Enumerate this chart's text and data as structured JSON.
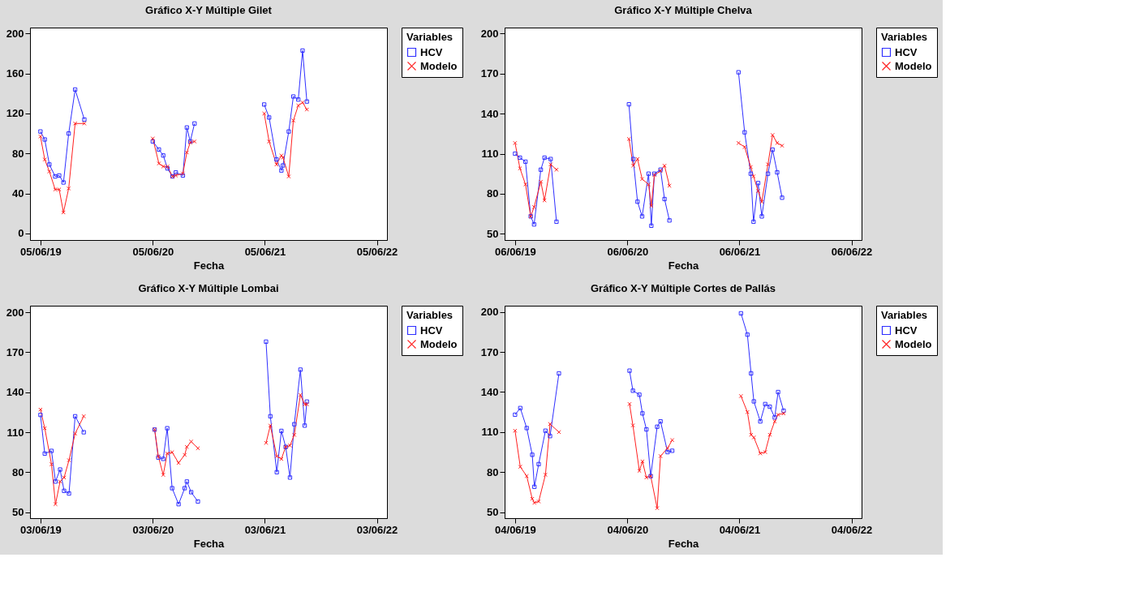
{
  "chart_data": [
    {
      "type": "line",
      "title": "Gráfico X-Y Múltiple Gilet",
      "xlabel": "Fecha",
      "legend_title": "Variables",
      "legend": "top right",
      "grid": false,
      "xlim": [
        "2019-05-02",
        "2022-07-08"
      ],
      "xticks": [
        {
          "value": "2019-06-05",
          "label": "05/06/19"
        },
        {
          "value": "2020-06-05",
          "label": "05/06/20"
        },
        {
          "value": "2021-06-05",
          "label": "05/06/21"
        },
        {
          "value": "2022-06-05",
          "label": "05/06/22"
        }
      ],
      "ylim": [
        -6.6,
        206
      ],
      "yticks": [
        0,
        40,
        80,
        120,
        160,
        200
      ],
      "x": [
        "2019-06-05",
        "2019-06-19",
        "2019-07-04",
        "2019-07-23",
        "2019-08-05",
        "2019-08-19",
        "2019-09-05",
        "2019-09-26",
        "2019-10-26",
        "2020-01-01",
        "2020-06-05",
        "2020-06-25",
        "2020-07-09",
        "2020-07-23",
        "2020-08-08",
        "2020-08-19",
        "2020-09-11",
        "2020-09-24",
        "2020-10-05",
        "2020-10-19",
        "2021-01-01",
        "2021-06-03",
        "2021-06-19",
        "2021-07-13",
        "2021-07-29",
        "2021-08-03",
        "2021-08-22",
        "2021-09-06",
        "2021-09-22",
        "2021-10-06",
        "2021-10-20"
      ],
      "series": [
        {
          "name": "HCV",
          "color": "#2f2fff",
          "marker": "square",
          "values": [
            102,
            94,
            69,
            57,
            58,
            51,
            100,
            144,
            114,
            null,
            92,
            84,
            78,
            65,
            57,
            61,
            58,
            106,
            92,
            110,
            null,
            129,
            116,
            74,
            63,
            68,
            102,
            137,
            134,
            183,
            132
          ]
        },
        {
          "name": "Modelo",
          "color": "#ff2020",
          "marker": "cross",
          "values": [
            97,
            74,
            62,
            44,
            44,
            21,
            45,
            110,
            110,
            null,
            95,
            70,
            67,
            67,
            57,
            58,
            60,
            81,
            91,
            92,
            null,
            120,
            92,
            69,
            78,
            76,
            57,
            113,
            128,
            131,
            124
          ]
        }
      ]
    },
    {
      "type": "line",
      "title": "Gráfico X-Y Múltiple Chelva",
      "xlabel": "Fecha",
      "legend_title": "Variables",
      "legend": "top right",
      "grid": false,
      "xlim": [
        "2019-05-03",
        "2022-07-09"
      ],
      "xticks": [
        {
          "value": "2019-06-06",
          "label": "06/06/19"
        },
        {
          "value": "2020-06-06",
          "label": "06/06/20"
        },
        {
          "value": "2021-06-06",
          "label": "06/06/21"
        },
        {
          "value": "2022-06-06",
          "label": "06/06/22"
        }
      ],
      "ylim": [
        45.3,
        204.5
      ],
      "yticks": [
        50,
        80,
        110,
        140,
        170,
        200
      ],
      "x": [
        "2019-06-06",
        "2019-06-22",
        "2019-07-10",
        "2019-07-27",
        "2019-08-07",
        "2019-08-29",
        "2019-09-10",
        "2019-09-30",
        "2019-10-19",
        "2020-01-01",
        "2020-06-11",
        "2020-06-25",
        "2020-07-09",
        "2020-07-24",
        "2020-08-14",
        "2020-08-23",
        "2020-09-02",
        "2020-09-22",
        "2020-10-05",
        "2020-10-21",
        "2021-01-01",
        "2021-06-03",
        "2021-06-23",
        "2021-07-13",
        "2021-07-22",
        "2021-08-06",
        "2021-08-18",
        "2021-09-07",
        "2021-09-22",
        "2021-10-07",
        "2021-10-23"
      ],
      "series": [
        {
          "name": "HCV",
          "color": "#2f2fff",
          "marker": "square",
          "values": [
            110,
            107,
            104,
            63,
            57,
            98,
            107,
            106,
            59,
            null,
            147,
            106,
            74,
            63,
            95,
            56,
            95,
            98,
            76,
            60,
            null,
            171,
            126,
            95,
            59,
            88,
            63,
            95,
            113,
            96,
            77
          ]
        },
        {
          "name": "Modelo",
          "color": "#ff2020",
          "marker": "cross",
          "values": [
            118,
            99,
            87,
            63,
            70,
            89,
            75,
            102,
            98,
            null,
            121,
            101,
            106,
            91,
            87,
            71,
            94,
            97,
            101,
            86,
            null,
            118,
            115,
            100,
            93,
            82,
            74,
            102,
            124,
            118,
            116
          ]
        }
      ]
    },
    {
      "type": "line",
      "title": "Gráfico X-Y Múltiple Lombai",
      "xlabel": "Fecha",
      "legend_title": "Variables",
      "legend": "top right",
      "grid": false,
      "xlim": [
        "2019-04-30",
        "2022-07-06"
      ],
      "xticks": [
        {
          "value": "2019-06-03",
          "label": "03/06/19"
        },
        {
          "value": "2020-06-03",
          "label": "03/06/20"
        },
        {
          "value": "2021-06-03",
          "label": "03/06/21"
        },
        {
          "value": "2022-06-03",
          "label": "03/06/22"
        }
      ],
      "ylim": [
        45.5,
        205
      ],
      "yticks": [
        50,
        80,
        110,
        140,
        170,
        200
      ],
      "x": [
        "2019-06-03",
        "2019-06-17",
        "2019-07-09",
        "2019-07-22",
        "2019-08-06",
        "2019-08-19",
        "2019-09-04",
        "2019-09-24",
        "2019-10-22",
        "2020-01-01",
        "2020-06-09",
        "2020-06-21",
        "2020-07-07",
        "2020-07-20",
        "2020-08-05",
        "2020-08-26",
        "2020-09-15",
        "2020-09-22",
        "2020-10-06",
        "2020-10-28",
        "2021-01-01",
        "2021-06-07",
        "2021-06-21",
        "2021-07-12",
        "2021-07-27",
        "2021-08-10",
        "2021-08-24",
        "2021-09-07",
        "2021-09-27",
        "2021-10-11",
        "2021-10-18"
      ],
      "series": [
        {
          "name": "HCV",
          "color": "#2f2fff",
          "marker": "square",
          "values": [
            123,
            94,
            96,
            73,
            82,
            66,
            64,
            122,
            110,
            null,
            112,
            91,
            90,
            113,
            68,
            56,
            68,
            73,
            65,
            58,
            null,
            178,
            122,
            80,
            111,
            99,
            76,
            116,
            157,
            115,
            133
          ]
        },
        {
          "name": "Modelo",
          "color": "#ff2020",
          "marker": "cross",
          "values": [
            127,
            113,
            86,
            56,
            73,
            76,
            89,
            109,
            122,
            null,
            112,
            92,
            78,
            94,
            95,
            87,
            93,
            99,
            103,
            98,
            null,
            102,
            115,
            92,
            90,
            99,
            100,
            108,
            138,
            131,
            131
          ]
        }
      ]
    },
    {
      "type": "line",
      "title": "Gráfico X-Y Múltiple Cortes de Pallás",
      "xlabel": "Fecha",
      "legend_title": "Variables",
      "legend": "top right",
      "grid": false,
      "xlim": [
        "2019-05-01",
        "2022-07-07"
      ],
      "xticks": [
        {
          "value": "2019-06-04",
          "label": "04/06/19"
        },
        {
          "value": "2020-06-04",
          "label": "04/06/20"
        },
        {
          "value": "2021-06-04",
          "label": "04/06/21"
        },
        {
          "value": "2022-06-04",
          "label": "04/06/22"
        }
      ],
      "ylim": [
        45.5,
        204.7
      ],
      "yticks": [
        50,
        80,
        110,
        140,
        170,
        200
      ],
      "x": [
        "2019-06-04",
        "2019-06-21",
        "2019-07-12",
        "2019-07-30",
        "2019-08-06",
        "2019-08-20",
        "2019-09-11",
        "2019-09-26",
        "2019-10-25",
        "2020-01-01",
        "2020-06-11",
        "2020-06-22",
        "2020-07-13",
        "2020-07-23",
        "2020-08-05",
        "2020-08-19",
        "2020-09-09",
        "2020-09-20",
        "2020-10-13",
        "2020-10-28",
        "2021-01-01",
        "2021-06-09",
        "2021-06-30",
        "2021-07-12",
        "2021-07-21",
        "2021-08-11",
        "2021-08-27",
        "2021-09-11",
        "2021-09-27",
        "2021-10-08",
        "2021-10-26"
      ],
      "series": [
        {
          "name": "HCV",
          "color": "#2f2fff",
          "marker": "square",
          "values": [
            123,
            128,
            113,
            93,
            69,
            86,
            111,
            107,
            154,
            null,
            156,
            141,
            138,
            124,
            112,
            77,
            114,
            118,
            95,
            96,
            null,
            199,
            183,
            154,
            133,
            118,
            131,
            129,
            121,
            140,
            126
          ]
        },
        {
          "name": "Modelo",
          "color": "#ff2020",
          "marker": "cross",
          "values": [
            111,
            84,
            77,
            60,
            57,
            58,
            78,
            116,
            110,
            null,
            131,
            115,
            81,
            88,
            76,
            77,
            53,
            92,
            98,
            104,
            null,
            137,
            125,
            108,
            106,
            94,
            95,
            108,
            118,
            123,
            124
          ]
        }
      ]
    }
  ]
}
